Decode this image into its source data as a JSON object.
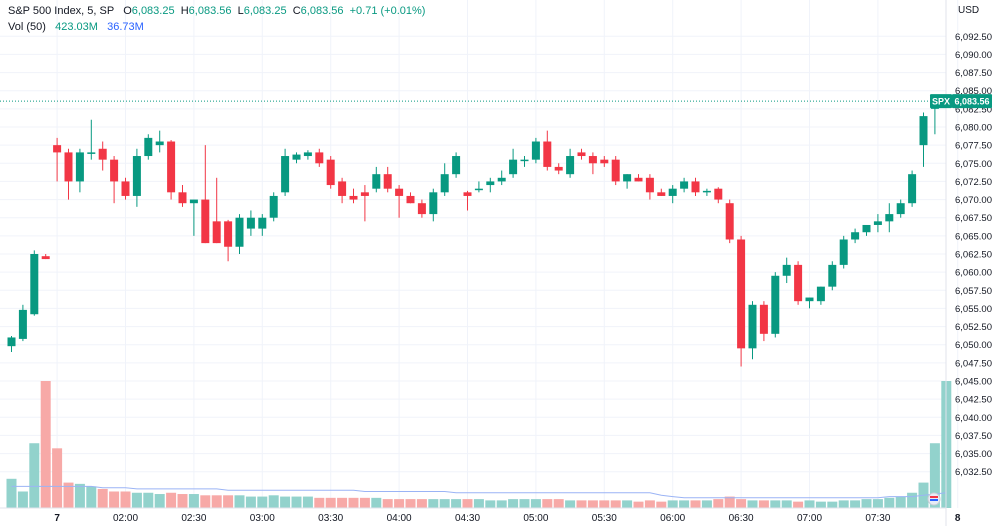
{
  "legend": {
    "symbol": "S&P 500 Index, 5, SP",
    "open_label": "O",
    "open": "6,083.25",
    "high_label": "H",
    "high": "6,083.56",
    "low_label": "L",
    "low": "6,083.25",
    "close_label": "C",
    "close": "6,083.56",
    "change": "+0.71 (+0.01%)",
    "volume_label": "Vol (50)",
    "volume_value": "423.03M",
    "volume_ma": "36.73M"
  },
  "currency": "USD",
  "price_tag": {
    "label": "SPX",
    "value": "6,083.56"
  },
  "colors": {
    "up": "#089981",
    "down": "#f23645",
    "up_volume": "#92d2cc",
    "down_volume": "#f7a9a7",
    "ma_line": "#2962ff",
    "grid": "#f0f3fa"
  },
  "chart_data": {
    "type": "candlestick",
    "ylim": [
      6027.5,
      6097.5
    ],
    "y_ticks": [
      "6,032.50",
      "6,035.00",
      "6,037.50",
      "6,040.00",
      "6,042.50",
      "6,045.00",
      "6,047.50",
      "6,050.00",
      "6,052.50",
      "6,055.00",
      "6,057.50",
      "6,060.00",
      "6,062.50",
      "6,065.00",
      "6,067.50",
      "6,070.00",
      "6,072.50",
      "6,075.00",
      "6,077.50",
      "6,080.00",
      "6,082.50",
      "6,085.00",
      "6,087.50",
      "6,090.00",
      "6,092.50"
    ],
    "y_tick_values": [
      6032.5,
      6035,
      6037.5,
      6040,
      6042.5,
      6045,
      6047.5,
      6050,
      6052.5,
      6055,
      6057.5,
      6060,
      6062.5,
      6065,
      6067.5,
      6070,
      6072.5,
      6075,
      6077.5,
      6080,
      6082.5,
      6085,
      6087.5,
      6090,
      6092.5
    ],
    "x_ticks": [
      {
        "label": "7",
        "index": 4,
        "bold": true
      },
      {
        "label": "02:00",
        "index": 10
      },
      {
        "label": "02:30",
        "index": 16
      },
      {
        "label": "03:00",
        "index": 22
      },
      {
        "label": "03:30",
        "index": 28
      },
      {
        "label": "04:00",
        "index": 34
      },
      {
        "label": "04:30",
        "index": 40
      },
      {
        "label": "05:00",
        "index": 46
      },
      {
        "label": "05:30",
        "index": 52
      },
      {
        "label": "06:00",
        "index": 58
      },
      {
        "label": "06:30",
        "index": 64
      },
      {
        "label": "07:00",
        "index": 70
      },
      {
        "label": "07:30",
        "index": 76
      },
      {
        "label": "8",
        "index": 83,
        "bold": true
      }
    ],
    "candles": [
      {
        "o": 6049.8,
        "h": 6051.2,
        "l": 6049.0,
        "c": 6051.0
      },
      {
        "o": 6050.8,
        "h": 6055.5,
        "l": 6050.5,
        "c": 6054.8
      },
      {
        "o": 6054.2,
        "h": 6063.0,
        "l": 6054.0,
        "c": 6062.5
      },
      {
        "o": 6062.2,
        "h": 6062.5,
        "l": 6061.8,
        "c": 6061.8
      },
      {
        "o": 6077.5,
        "h": 6078.5,
        "l": 6072.5,
        "c": 6076.5
      },
      {
        "o": 6076.5,
        "h": 6077.0,
        "l": 6070.0,
        "c": 6072.5
      },
      {
        "o": 6072.5,
        "h": 6077.0,
        "l": 6071.0,
        "c": 6076.5
      },
      {
        "o": 6076.5,
        "h": 6081.0,
        "l": 6075.5,
        "c": 6076.5
      },
      {
        "o": 6077.0,
        "h": 6078.0,
        "l": 6074.0,
        "c": 6075.5
      },
      {
        "o": 6075.5,
        "h": 6076.0,
        "l": 6069.5,
        "c": 6072.5
      },
      {
        "o": 6072.5,
        "h": 6073.0,
        "l": 6070.0,
        "c": 6070.5
      },
      {
        "o": 6070.5,
        "h": 6077.0,
        "l": 6069.0,
        "c": 6076.0
      },
      {
        "o": 6076.0,
        "h": 6079.0,
        "l": 6075.5,
        "c": 6078.5
      },
      {
        "o": 6077.5,
        "h": 6079.5,
        "l": 6076.5,
        "c": 6078.0
      },
      {
        "o": 6078.0,
        "h": 6078.2,
        "l": 6070.0,
        "c": 6071.0
      },
      {
        "o": 6071.0,
        "h": 6072.0,
        "l": 6069.0,
        "c": 6069.5
      },
      {
        "o": 6069.5,
        "h": 6070.0,
        "l": 6065.0,
        "c": 6070.0
      },
      {
        "o": 6070.0,
        "h": 6077.5,
        "l": 6064.0,
        "c": 6064.0
      },
      {
        "o": 6067.0,
        "h": 6073.0,
        "l": 6064.0,
        "c": 6064.0
      },
      {
        "o": 6067.0,
        "h": 6067.2,
        "l": 6061.5,
        "c": 6063.5
      },
      {
        "o": 6063.5,
        "h": 6068.0,
        "l": 6062.5,
        "c": 6067.5
      },
      {
        "o": 6066.0,
        "h": 6068.5,
        "l": 6065.0,
        "c": 6067.5
      },
      {
        "o": 6066.0,
        "h": 6068.0,
        "l": 6065.0,
        "c": 6067.5
      },
      {
        "o": 6067.5,
        "h": 6071.0,
        "l": 6067.0,
        "c": 6070.5
      },
      {
        "o": 6071.0,
        "h": 6077.0,
        "l": 6070.5,
        "c": 6076.0
      },
      {
        "o": 6075.5,
        "h": 6076.5,
        "l": 6075.0,
        "c": 6076.2
      },
      {
        "o": 6076.0,
        "h": 6076.8,
        "l": 6075.5,
        "c": 6076.5
      },
      {
        "o": 6076.5,
        "h": 6077.0,
        "l": 6074.5,
        "c": 6075.0
      },
      {
        "o": 6075.5,
        "h": 6076.0,
        "l": 6071.5,
        "c": 6072.0
      },
      {
        "o": 6072.5,
        "h": 6073.0,
        "l": 6069.5,
        "c": 6070.5
      },
      {
        "o": 6070.5,
        "h": 6071.5,
        "l": 6069.5,
        "c": 6070.0
      },
      {
        "o": 6071.0,
        "h": 6072.0,
        "l": 6067.0,
        "c": 6070.5
      },
      {
        "o": 6071.5,
        "h": 6074.5,
        "l": 6071.0,
        "c": 6073.5
      },
      {
        "o": 6073.5,
        "h": 6074.5,
        "l": 6071.0,
        "c": 6071.5
      },
      {
        "o": 6071.5,
        "h": 6072.0,
        "l": 6067.5,
        "c": 6070.5
      },
      {
        "o": 6070.5,
        "h": 6071.0,
        "l": 6069.5,
        "c": 6069.5
      },
      {
        "o": 6069.5,
        "h": 6070.0,
        "l": 6067.5,
        "c": 6068.0
      },
      {
        "o": 6068.0,
        "h": 6071.5,
        "l": 6067.0,
        "c": 6071.0
      },
      {
        "o": 6071.0,
        "h": 6075.0,
        "l": 6070.5,
        "c": 6073.5
      },
      {
        "o": 6073.5,
        "h": 6076.5,
        "l": 6073.0,
        "c": 6076.0
      },
      {
        "o": 6071.0,
        "h": 6071.2,
        "l": 6068.5,
        "c": 6070.5
      },
      {
        "o": 6071.5,
        "h": 6072.5,
        "l": 6071.0,
        "c": 6071.5
      },
      {
        "o": 6072.0,
        "h": 6073.0,
        "l": 6071.0,
        "c": 6072.5
      },
      {
        "o": 6072.5,
        "h": 6074.0,
        "l": 6072.0,
        "c": 6073.0
      },
      {
        "o": 6073.5,
        "h": 6077.0,
        "l": 6073.0,
        "c": 6075.5
      },
      {
        "o": 6075.5,
        "h": 6076.0,
        "l": 6074.5,
        "c": 6075.5
      },
      {
        "o": 6075.5,
        "h": 6078.5,
        "l": 6075.0,
        "c": 6078.0
      },
      {
        "o": 6078.0,
        "h": 6079.5,
        "l": 6074.0,
        "c": 6074.5
      },
      {
        "o": 6074.5,
        "h": 6075.0,
        "l": 6073.5,
        "c": 6074.0
      },
      {
        "o": 6073.5,
        "h": 6077.0,
        "l": 6073.0,
        "c": 6076.0
      },
      {
        "o": 6076.5,
        "h": 6077.0,
        "l": 6075.5,
        "c": 6076.0
      },
      {
        "o": 6076.0,
        "h": 6076.5,
        "l": 6073.5,
        "c": 6075.0
      },
      {
        "o": 6075.5,
        "h": 6076.0,
        "l": 6074.5,
        "c": 6075.0
      },
      {
        "o": 6075.5,
        "h": 6076.0,
        "l": 6072.0,
        "c": 6072.5
      },
      {
        "o": 6072.5,
        "h": 6073.5,
        "l": 6071.5,
        "c": 6073.5
      },
      {
        "o": 6073.0,
        "h": 6073.5,
        "l": 6072.5,
        "c": 6072.5
      },
      {
        "o": 6073.0,
        "h": 6073.5,
        "l": 6070.0,
        "c": 6071.0
      },
      {
        "o": 6071.0,
        "h": 6071.5,
        "l": 6070.5,
        "c": 6070.5
      },
      {
        "o": 6070.5,
        "h": 6072.0,
        "l": 6069.5,
        "c": 6071.5
      },
      {
        "o": 6071.5,
        "h": 6073.0,
        "l": 6071.0,
        "c": 6072.5
      },
      {
        "o": 6072.5,
        "h": 6073.0,
        "l": 6070.5,
        "c": 6071.0
      },
      {
        "o": 6071.0,
        "h": 6071.5,
        "l": 6070.5,
        "c": 6071.2
      },
      {
        "o": 6071.5,
        "h": 6071.7,
        "l": 6069.5,
        "c": 6070.0
      },
      {
        "o": 6069.5,
        "h": 6070.0,
        "l": 6064.0,
        "c": 6064.5
      },
      {
        "o": 6064.5,
        "h": 6065.0,
        "l": 6047.0,
        "c": 6049.5
      },
      {
        "o": 6049.5,
        "h": 6056.0,
        "l": 6048.0,
        "c": 6055.5
      },
      {
        "o": 6055.5,
        "h": 6056.0,
        "l": 6050.5,
        "c": 6051.5
      },
      {
        "o": 6051.5,
        "h": 6060.0,
        "l": 6051.0,
        "c": 6059.5
      },
      {
        "o": 6059.5,
        "h": 6062.0,
        "l": 6058.5,
        "c": 6061.0
      },
      {
        "o": 6061.0,
        "h": 6061.5,
        "l": 6055.5,
        "c": 6056.0
      },
      {
        "o": 6056.0,
        "h": 6056.5,
        "l": 6055.0,
        "c": 6056.5
      },
      {
        "o": 6056.0,
        "h": 6058.0,
        "l": 6055.5,
        "c": 6058.0
      },
      {
        "o": 6058.0,
        "h": 6061.5,
        "l": 6057.5,
        "c": 6061.0
      },
      {
        "o": 6061.0,
        "h": 6065.0,
        "l": 6060.5,
        "c": 6064.5
      },
      {
        "o": 6064.5,
        "h": 6066.0,
        "l": 6064.0,
        "c": 6065.5
      },
      {
        "o": 6065.5,
        "h": 6066.5,
        "l": 6065.0,
        "c": 6066.5
      },
      {
        "o": 6066.5,
        "h": 6068.0,
        "l": 6065.5,
        "c": 6067.0
      },
      {
        "o": 6067.0,
        "h": 6069.5,
        "l": 6065.5,
        "c": 6068.0
      },
      {
        "o": 6068.0,
        "h": 6070.0,
        "l": 6067.5,
        "c": 6069.5
      },
      {
        "o": 6069.5,
        "h": 6074.0,
        "l": 6069.0,
        "c": 6073.5
      },
      {
        "o": 6077.5,
        "h": 6082.0,
        "l": 6074.5,
        "c": 6081.5
      },
      {
        "o": 6082.5,
        "h": 6083.5,
        "l": 6079.0,
        "c": 6083.0
      },
      {
        "o": 6083.25,
        "h": 6083.56,
        "l": 6083.25,
        "c": 6083.56
      }
    ],
    "volume": [
      0.23,
      0.13,
      0.51,
      1.0,
      0.47,
      0.2,
      0.19,
      0.17,
      0.15,
      0.13,
      0.13,
      0.12,
      0.12,
      0.11,
      0.12,
      0.11,
      0.11,
      0.1,
      0.1,
      0.1,
      0.1,
      0.09,
      0.09,
      0.1,
      0.09,
      0.09,
      0.09,
      0.08,
      0.08,
      0.08,
      0.08,
      0.08,
      0.08,
      0.07,
      0.07,
      0.07,
      0.07,
      0.07,
      0.07,
      0.07,
      0.07,
      0.07,
      0.06,
      0.06,
      0.07,
      0.07,
      0.07,
      0.07,
      0.07,
      0.06,
      0.06,
      0.06,
      0.06,
      0.06,
      0.06,
      0.05,
      0.06,
      0.05,
      0.06,
      0.06,
      0.06,
      0.06,
      0.07,
      0.09,
      0.07,
      0.06,
      0.06,
      0.06,
      0.06,
      0.05,
      0.06,
      0.05,
      0.05,
      0.06,
      0.06,
      0.07,
      0.07,
      0.08,
      0.09,
      0.12,
      0.2,
      0.51,
      1.0
    ],
    "volume_ma": [
      0.17,
      0.17,
      0.17,
      0.17,
      0.17,
      0.17,
      0.17,
      0.17,
      0.16,
      0.16,
      0.16,
      0.15,
      0.15,
      0.15,
      0.15,
      0.15,
      0.15,
      0.15,
      0.15,
      0.14,
      0.14,
      0.14,
      0.14,
      0.14,
      0.14,
      0.14,
      0.14,
      0.14,
      0.14,
      0.14,
      0.14,
      0.13,
      0.13,
      0.13,
      0.13,
      0.13,
      0.13,
      0.13,
      0.13,
      0.12,
      0.12,
      0.12,
      0.12,
      0.12,
      0.12,
      0.12,
      0.12,
      0.12,
      0.12,
      0.12,
      0.12,
      0.12,
      0.12,
      0.12,
      0.12,
      0.12,
      0.12,
      0.1,
      0.09,
      0.08,
      0.08,
      0.08,
      0.08,
      0.08,
      0.08,
      0.08,
      0.08,
      0.08,
      0.08,
      0.08,
      0.08,
      0.08,
      0.08,
      0.08,
      0.08,
      0.08,
      0.08,
      0.09,
      0.09,
      0.09,
      0.1,
      0.11,
      0.12
    ],
    "last_price": 6083.56
  }
}
